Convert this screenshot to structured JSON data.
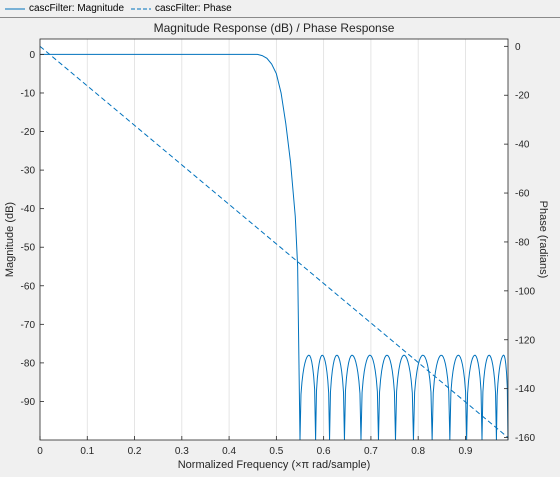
{
  "legend": {
    "magnitude_label": "cascFilter: Magnitude",
    "phase_label": "cascFilter: Phase"
  },
  "colors": {
    "series": "#0072bd",
    "background": "#f0f0f0",
    "plot_area": "#ffffff",
    "grid": "#dfdfdf",
    "axis": "#262626"
  },
  "chart_data": {
    "type": "line",
    "title": "Magnitude Response (dB) / Phase Response",
    "xlabel": "Normalized Frequency (×π rad/sample)",
    "ylabel_left": "Magnitude (dB)",
    "ylabel_right": "Phase (radians)",
    "xlim": [
      0,
      0.99
    ],
    "ylim_left": [
      -100,
      4
    ],
    "ylim_right": [
      -161,
      3
    ],
    "grid": "vertical lines at x ticks",
    "x_ticks": [
      0,
      0.1,
      0.2,
      0.3,
      0.4,
      0.5,
      0.6,
      0.7,
      0.8,
      0.9
    ],
    "x_tick_labels": [
      "0",
      "0.1",
      "0.2",
      "0.3",
      "0.4",
      "0.5",
      "0.6",
      "0.7",
      "0.8",
      "0.9"
    ],
    "y_left_ticks": [
      0,
      -10,
      -20,
      -30,
      -40,
      -50,
      -60,
      -70,
      -80,
      -90
    ],
    "y_left_tick_labels": [
      "0",
      "-10",
      "-20",
      "-30",
      "-40",
      "-50",
      "-60",
      "-70",
      "-80",
      "-90"
    ],
    "y_right_ticks": [
      0,
      -20,
      -40,
      -60,
      -80,
      -100,
      -120,
      -140,
      -160
    ],
    "y_right_tick_labels": [
      "0",
      "-20",
      "-40",
      "-60",
      "-80",
      "-100",
      "-120",
      "-140",
      "-160"
    ],
    "series": [
      {
        "name": "cascFilter: Magnitude",
        "axis": "left",
        "line_style": "solid",
        "points": [
          [
            0,
            0
          ],
          [
            0.1,
            0
          ],
          [
            0.2,
            0
          ],
          [
            0.3,
            0
          ],
          [
            0.4,
            0
          ],
          [
            0.46,
            0
          ],
          [
            0.47,
            -0.3
          ],
          [
            0.48,
            -1
          ],
          [
            0.49,
            -2.5
          ],
          [
            0.5,
            -5
          ],
          [
            0.51,
            -10
          ],
          [
            0.52,
            -18
          ],
          [
            0.53,
            -28
          ],
          [
            0.54,
            -42
          ],
          [
            0.545,
            -55
          ],
          [
            0.55,
            -100
          ]
        ],
        "stopband": {
          "x_start": 0.55,
          "x_end": 0.99,
          "lobe_peaks": [
            0.569,
            0.597,
            0.628,
            0.66,
            0.698,
            0.734,
            0.77,
            0.81,
            0.849,
            0.885,
            0.92,
            0.95,
            0.981
          ],
          "lobe_peak_db": -78
        }
      },
      {
        "name": "cascFilter: Phase",
        "axis": "right",
        "line_style": "dashed",
        "points": [
          [
            0,
            0
          ],
          [
            0.99,
            -160
          ]
        ]
      }
    ]
  }
}
